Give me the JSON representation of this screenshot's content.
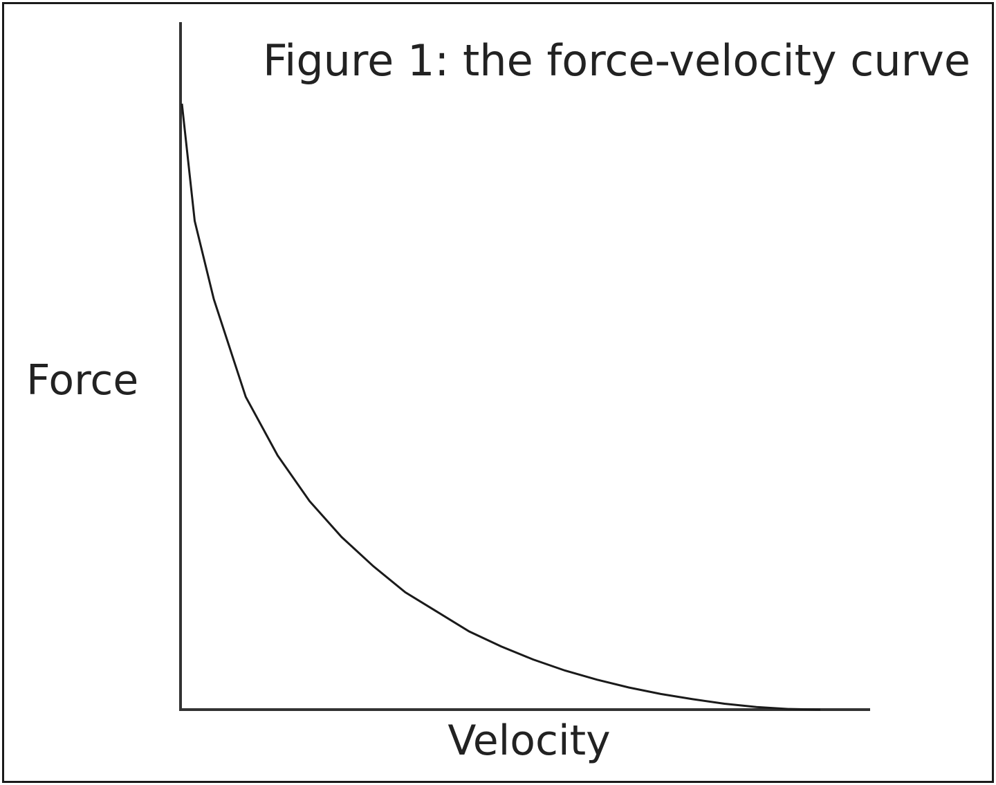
{
  "chart_data": {
    "type": "line",
    "title": "Figure 1: the force-velocity curve",
    "xlabel": "Velocity",
    "ylabel": "Force",
    "xlim": [
      0,
      1
    ],
    "ylim": [
      0,
      1
    ],
    "grid": false,
    "series": [
      {
        "x": [
          0,
          0.02,
          0.05,
          0.08,
          0.1,
          0.15,
          0.2,
          0.25,
          0.3,
          0.35,
          0.4,
          0.45,
          0.5,
          0.55,
          0.6,
          0.65,
          0.7,
          0.75,
          0.8,
          0.85,
          0.9,
          0.95,
          1.0
        ],
        "y": [
          0.93,
          0.75,
          0.63,
          0.54,
          0.48,
          0.39,
          0.32,
          0.265,
          0.22,
          0.18,
          0.15,
          0.12,
          0.097,
          0.077,
          0.06,
          0.046,
          0.034,
          0.024,
          0.016,
          0.009,
          0.004,
          0.001,
          0.0
        ]
      }
    ]
  }
}
